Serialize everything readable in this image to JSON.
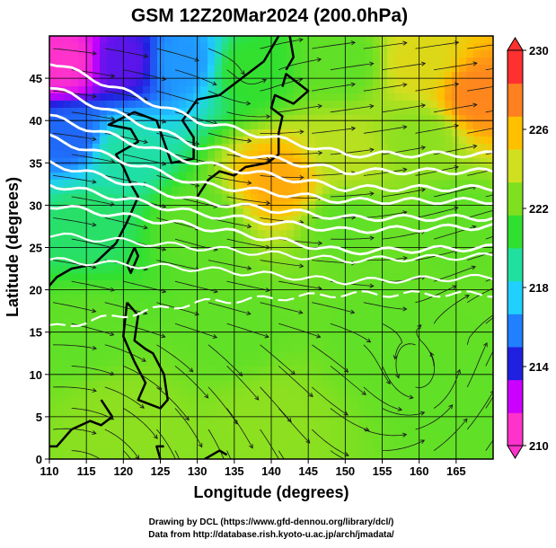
{
  "title": "GSM 12Z20Mar2024 (200.0hPa)",
  "x_axis_label": "Longitude (degrees)",
  "y_axis_label": "Latitude  (degrees)",
  "x_ticks": [
    110,
    115,
    120,
    125,
    130,
    135,
    140,
    145,
    150,
    155,
    160,
    165
  ],
  "y_ticks": [
    0,
    5,
    10,
    15,
    20,
    25,
    30,
    35,
    40,
    45
  ],
  "colorbar": {
    "ticks": [
      210,
      214,
      218,
      222,
      226,
      230
    ],
    "colors": [
      "#ff33cc",
      "#cc00ff",
      "#2020e0",
      "#2080ff",
      "#20d0ff",
      "#20e0a0",
      "#30e030",
      "#80e020",
      "#d0e020",
      "#ffc000",
      "#ff8020",
      "#ff3030"
    ]
  },
  "credits": [
    "Drawing by DCL (https://www.gfd-dennou.org/library/dcl/)",
    "Data from http://database.rish.kyoto-u.ac.jp/arch/jmadata/"
  ],
  "chart_data": {
    "type": "heatmap",
    "title": "GSM 12Z20Mar2024 (200.0hPa)",
    "xlabel": "Longitude (degrees)",
    "ylabel": "Latitude  (degrees)",
    "xlim": [
      110,
      170
    ],
    "ylim": [
      0,
      50
    ],
    "colorbar_range": [
      210,
      230
    ],
    "colorbar_ticks": [
      210,
      214,
      218,
      222,
      226,
      230
    ],
    "field_samples": [
      {
        "lon": 112,
        "lat": 47,
        "value": 210
      },
      {
        "lon": 120,
        "lat": 47,
        "value": 213
      },
      {
        "lon": 128,
        "lat": 47,
        "value": 216
      },
      {
        "lon": 137,
        "lat": 46,
        "value": 221
      },
      {
        "lon": 150,
        "lat": 47,
        "value": 222
      },
      {
        "lon": 160,
        "lat": 47,
        "value": 225
      },
      {
        "lon": 168,
        "lat": 43,
        "value": 228
      },
      {
        "lon": 113,
        "lat": 38,
        "value": 215
      },
      {
        "lon": 120,
        "lat": 36,
        "value": 219
      },
      {
        "lon": 141,
        "lat": 33,
        "value": 227
      },
      {
        "lon": 150,
        "lat": 36,
        "value": 224
      },
      {
        "lon": 160,
        "lat": 38,
        "value": 223
      },
      {
        "lon": 115,
        "lat": 28,
        "value": 220
      },
      {
        "lon": 130,
        "lat": 28,
        "value": 222
      },
      {
        "lon": 150,
        "lat": 28,
        "value": 222
      },
      {
        "lon": 165,
        "lat": 28,
        "value": 222
      },
      {
        "lon": 115,
        "lat": 15,
        "value": 222
      },
      {
        "lon": 135,
        "lat": 15,
        "value": 222
      },
      {
        "lon": 155,
        "lat": 15,
        "value": 222
      },
      {
        "lon": 120,
        "lat": 5,
        "value": 223
      },
      {
        "lon": 140,
        "lat": 5,
        "value": 223
      },
      {
        "lon": 165,
        "lat": 8,
        "value": 222
      }
    ],
    "streamline_vortex_centers": [
      {
        "lon": 137,
        "lat": 45.5
      },
      {
        "lon": 160,
        "lat": 10
      }
    ],
    "contour_lat_at_lon": {
      "lon": [
        110,
        130,
        150,
        170
      ],
      "lines": [
        [
          47,
          40,
          36,
          36
        ],
        [
          44,
          37,
          34,
          34
        ],
        [
          40.5,
          35,
          32,
          32
        ],
        [
          38,
          32.5,
          30.5,
          30.5
        ],
        [
          35,
          30.5,
          28.5,
          28.5
        ],
        [
          32.5,
          29,
          27,
          27.5
        ],
        [
          30,
          27.5,
          24.5,
          25
        ],
        [
          26.5,
          25,
          23.5,
          24
        ],
        [
          23.5,
          22.5,
          21,
          21.5
        ],
        [
          15.5,
          18.5,
          19.5,
          19.5
        ]
      ]
    },
    "grid": true
  }
}
